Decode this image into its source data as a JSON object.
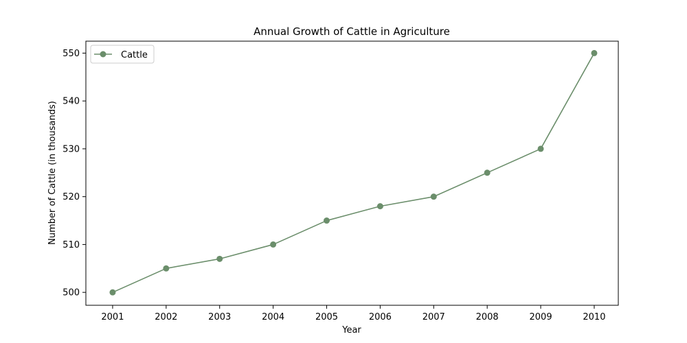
{
  "chart_data": {
    "type": "line",
    "title": "Annual Growth of Cattle in Agriculture",
    "xlabel": "Year",
    "ylabel": "Number of Cattle (in thousands)",
    "x": [
      2001,
      2002,
      2003,
      2004,
      2005,
      2006,
      2007,
      2008,
      2009,
      2010
    ],
    "xticks": [
      "2001",
      "2002",
      "2003",
      "2004",
      "2005",
      "2006",
      "2007",
      "2008",
      "2009",
      "2010"
    ],
    "series": [
      {
        "name": "Cattle",
        "values": [
          500,
          505,
          507,
          510,
          515,
          518,
          520,
          525,
          530,
          550
        ],
        "color": "#6b8e6b",
        "marker": "circle"
      }
    ],
    "xlim": [
      2000.5,
      2010.45
    ],
    "ylim": [
      497.3,
      552.5
    ],
    "yticks": [
      500,
      510,
      520,
      530,
      540,
      550
    ],
    "grid": false,
    "legend_position": "top-left"
  }
}
